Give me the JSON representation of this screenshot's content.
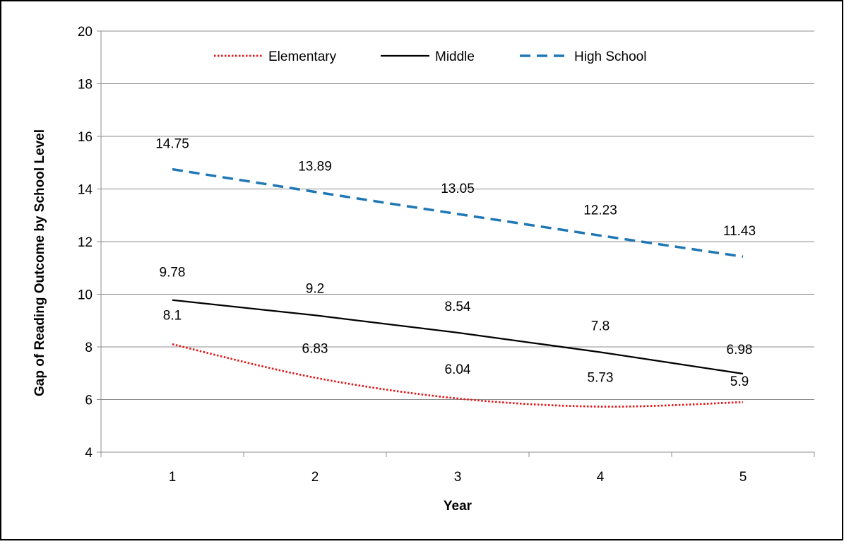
{
  "chart_data": {
    "type": "line",
    "title": "",
    "xlabel": "Year",
    "ylabel": "Gap of Reading Outcome by School Level",
    "x": [
      1,
      2,
      3,
      4,
      5
    ],
    "x_tick_labels": [
      "1",
      "2",
      "3",
      "4",
      "5"
    ],
    "ylim": [
      4,
      20
    ],
    "y_ticks": [
      4,
      6,
      8,
      10,
      12,
      14,
      16,
      18,
      20
    ],
    "y_tick_labels": [
      "4",
      "6",
      "8",
      "10",
      "12",
      "14",
      "16",
      "18",
      "20"
    ],
    "grid": "horizontal",
    "legend_position": "top",
    "series": [
      {
        "name": "Elementary",
        "values": [
          8.1,
          6.83,
          6.04,
          5.73,
          5.9
        ],
        "labels": [
          "8.1",
          "6.83",
          "6.04",
          "5.73",
          "5.9"
        ],
        "color": "#e31a1c",
        "style": "dotted",
        "smooth": true
      },
      {
        "name": "Middle",
        "values": [
          9.78,
          9.2,
          8.54,
          7.8,
          6.98
        ],
        "labels": [
          "9.78",
          "9.2",
          "8.54",
          "7.8",
          "6.98"
        ],
        "color": "#000000",
        "style": "solid",
        "smooth": false
      },
      {
        "name": "High School",
        "values": [
          14.75,
          13.89,
          13.05,
          12.23,
          11.43
        ],
        "labels": [
          "14.75",
          "13.89",
          "13.05",
          "12.23",
          "11.43"
        ],
        "color": "#1f77b4",
        "style": "dashed",
        "smooth": false
      }
    ]
  }
}
